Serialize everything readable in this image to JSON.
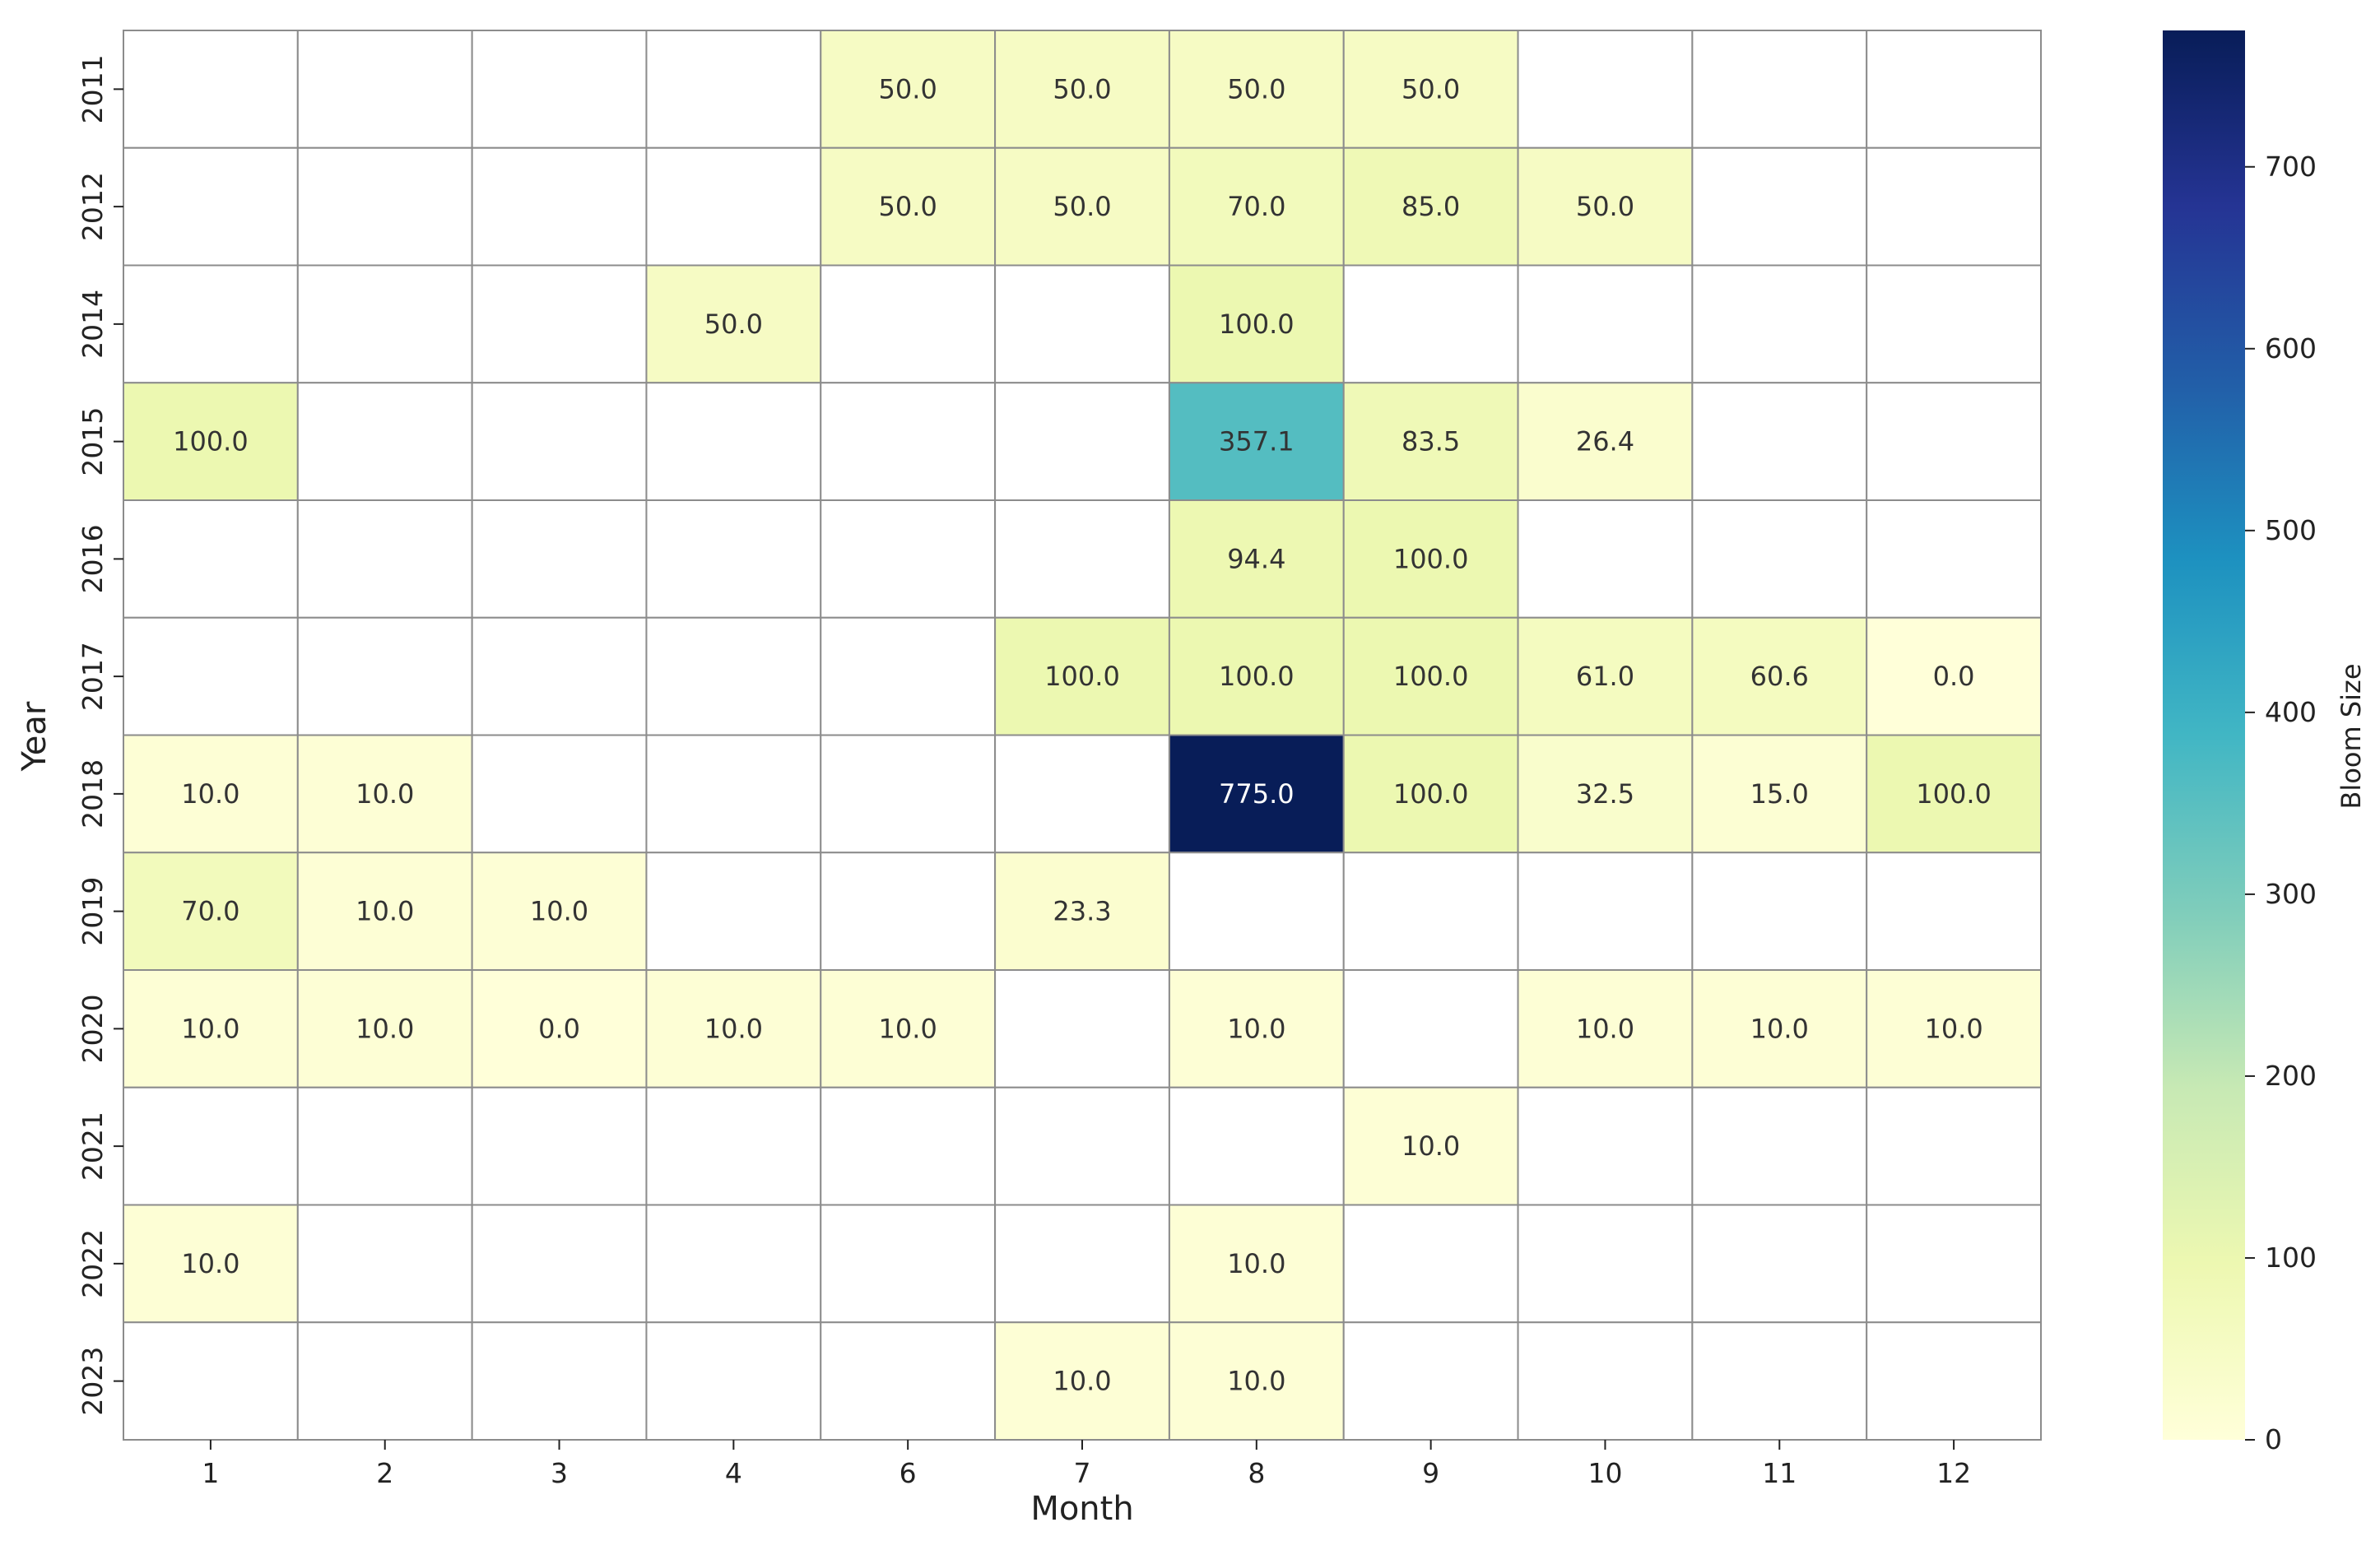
{
  "chart_data": {
    "type": "heatmap",
    "title": "",
    "xlabel": "Month",
    "ylabel": "Year",
    "x_categories": [
      "1",
      "2",
      "3",
      "4",
      "6",
      "7",
      "8",
      "9",
      "10",
      "11",
      "12"
    ],
    "y_categories": [
      "2011",
      "2012",
      "2014",
      "2015",
      "2016",
      "2017",
      "2018",
      "2019",
      "2020",
      "2021",
      "2022",
      "2023"
    ],
    "values": [
      [
        null,
        null,
        null,
        null,
        50.0,
        50.0,
        50.0,
        50.0,
        null,
        null,
        null
      ],
      [
        null,
        null,
        null,
        null,
        50.0,
        50.0,
        70.0,
        85.0,
        50.0,
        null,
        null
      ],
      [
        null,
        null,
        null,
        50.0,
        null,
        null,
        100.0,
        null,
        null,
        null,
        null
      ],
      [
        100.0,
        null,
        null,
        null,
        null,
        null,
        357.1,
        83.5,
        26.4,
        null,
        null
      ],
      [
        null,
        null,
        null,
        null,
        null,
        null,
        94.4,
        100.0,
        null,
        null,
        null
      ],
      [
        null,
        null,
        null,
        null,
        null,
        100.0,
        100.0,
        100.0,
        61.0,
        60.6,
        0.0
      ],
      [
        10.0,
        10.0,
        null,
        null,
        null,
        null,
        775.0,
        100.0,
        32.5,
        15.0,
        100.0
      ],
      [
        70.0,
        10.0,
        10.0,
        null,
        null,
        23.3,
        null,
        null,
        null,
        null,
        null
      ],
      [
        10.0,
        10.0,
        0.0,
        10.0,
        10.0,
        null,
        10.0,
        null,
        10.0,
        10.0,
        10.0
      ],
      [
        null,
        null,
        null,
        null,
        null,
        null,
        null,
        10.0,
        null,
        null,
        null
      ],
      [
        10.0,
        null,
        null,
        null,
        null,
        null,
        10.0,
        null,
        null,
        null,
        null
      ],
      [
        null,
        null,
        null,
        null,
        null,
        10.0,
        10.0,
        null,
        null,
        null,
        null
      ]
    ],
    "colorbar": {
      "label": "Bloom Size",
      "min": 0,
      "max": 775,
      "ticks": [
        0,
        100,
        200,
        300,
        400,
        500,
        600,
        700
      ],
      "colormap": "YlGnBu"
    },
    "grid": true
  }
}
